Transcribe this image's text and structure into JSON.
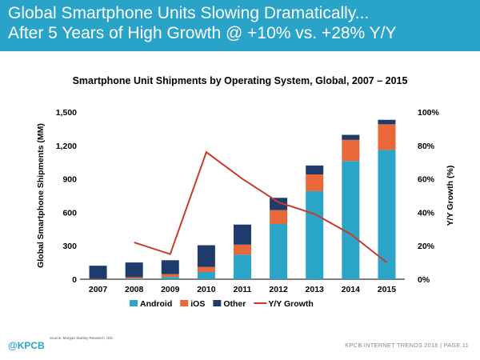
{
  "header": {
    "line1": "Global Smartphone Units Slowing Dramatically...",
    "line2": "After 5 Years of High Growth @ +10% vs. +28% Y/Y"
  },
  "footer": {
    "logo": "@KPCB",
    "source": "Source: Morgan Stanley Research, IDC.",
    "right": "KPCB INTERNET TRENDS 2016  |  PAGE 11"
  },
  "chart_data": {
    "type": "bar",
    "title": "Smartphone Unit Shipments by Operating System, Global, 2007 – 2015",
    "ylabel": "Global Smartphone Shipments (MM)",
    "y2label": "Y/Y Growth (%)",
    "categories": [
      "2007",
      "2008",
      "2009",
      "2010",
      "2011",
      "2012",
      "2013",
      "2014",
      "2015"
    ],
    "ylim": [
      0,
      1500
    ],
    "yticks": [
      "0",
      "300",
      "600",
      "900",
      "1,200",
      "1,500"
    ],
    "y2lim": [
      0,
      100
    ],
    "y2ticks": [
      "0%",
      "20%",
      "40%",
      "60%",
      "80%",
      "100%"
    ],
    "stacked": true,
    "series": [
      {
        "name": "Android",
        "color": "#2aa5c7",
        "values": [
          0,
          5,
          20,
          65,
          220,
          495,
          790,
          1060,
          1160
        ]
      },
      {
        "name": "iOS",
        "color": "#e8683a",
        "values": [
          3,
          12,
          25,
          45,
          90,
          125,
          150,
          190,
          230
        ]
      },
      {
        "name": "Other",
        "color": "#1f3b6b",
        "values": [
          118,
          133,
          125,
          195,
          180,
          110,
          80,
          45,
          40
        ]
      }
    ],
    "line_series": {
      "name": "Y/Y Growth",
      "color": "#c93a2a",
      "values": [
        null,
        22,
        15,
        76,
        60,
        46,
        39,
        27,
        10
      ]
    },
    "legend": "bottom"
  }
}
